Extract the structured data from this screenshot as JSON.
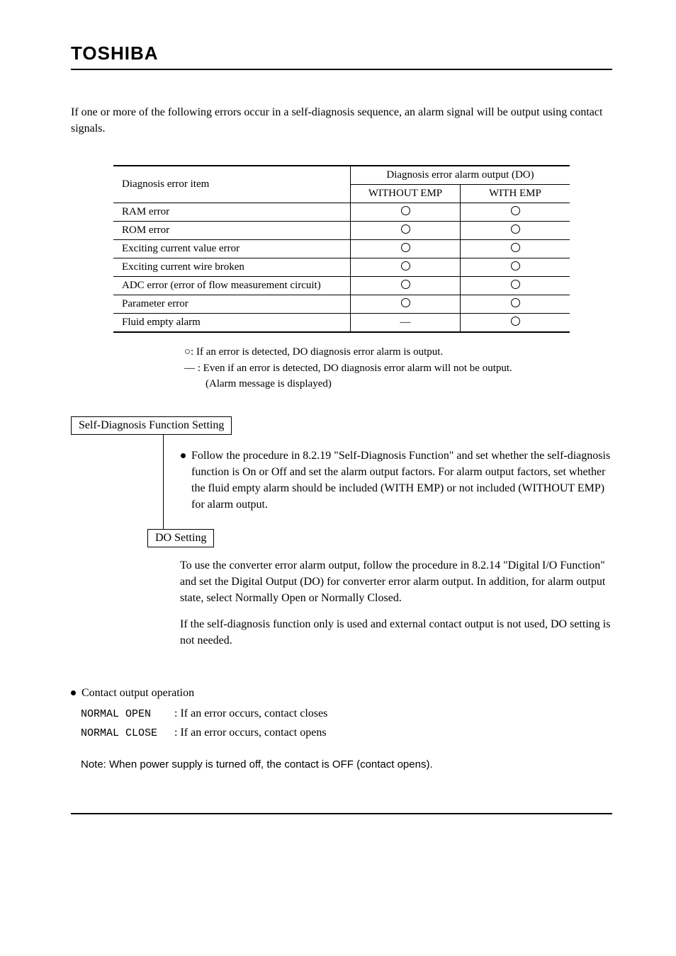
{
  "brand": "TOSHIBA",
  "intro": "If one or more of the following errors occur in a self-diagnosis sequence, an alarm signal will be output using contact signals.",
  "table": {
    "header_item": "Diagnosis error item",
    "header_output": "Diagnosis error alarm output (DO)",
    "col_without": "WITHOUT EMP",
    "col_with": "WITH EMP",
    "rows": [
      {
        "item": "RAM error",
        "without": "circle",
        "with": "circle"
      },
      {
        "item": "ROM error",
        "without": "circle",
        "with": "circle"
      },
      {
        "item": "Exciting current value error",
        "without": "circle",
        "with": "circle"
      },
      {
        "item": "Exciting current wire broken",
        "without": "circle",
        "with": "circle"
      },
      {
        "item": "ADC error (error of flow measurement circuit)",
        "without": "circle",
        "with": "circle"
      },
      {
        "item": "Parameter error",
        "without": "circle",
        "with": "circle"
      },
      {
        "item": "Fluid empty alarm",
        "without": "dash",
        "with": "circle"
      }
    ]
  },
  "legend": {
    "line1": "○: If an error is detected, DO diagnosis error alarm is output.",
    "line2": "― : Even if an error is detected, DO diagnosis error alarm will not be output.",
    "line3": "(Alarm message is displayed)"
  },
  "box1": "Self-Diagnosis Function Setting",
  "bullet1": "Follow the procedure in 8.2.19 \"Self-Diagnosis Function\" and set whether the self-diagnosis function is On or Off and set the alarm output factors. For alarm output factors, set whether the fluid empty alarm should be included (WITH EMP) or not included (WITHOUT EMP) for alarm output.",
  "box2": "DO Setting",
  "para2a": "To use the converter error alarm output, follow the procedure in 8.2.14 \"Digital I/O Function\" and set the Digital Output (DO) for converter error alarm output. In addition, for alarm output state, select Normally Open or Normally Closed.",
  "para2b": "If the self-diagnosis function only is used and external contact output is not used, DO setting is not needed.",
  "ops": {
    "heading": "Contact output operation",
    "open_label": "NORMAL OPEN",
    "open_text": ": If an error occurs, contact closes",
    "close_label": "NORMAL CLOSE",
    "close_text": ": If an error occurs, contact opens",
    "note": "Note: When power supply is turned off, the contact is OFF (contact opens)."
  }
}
